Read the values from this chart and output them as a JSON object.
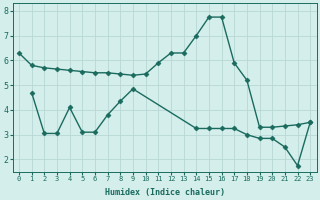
{
  "xlabel": "Humidex (Indice chaleur)",
  "background_color": "#d4eeec",
  "line_color": "#1a6b5e",
  "grid_color": "#b8d8d5",
  "x_line1": [
    0,
    1,
    2,
    3,
    4,
    5,
    6,
    7,
    8,
    9,
    10,
    11,
    12,
    13,
    14,
    15,
    16,
    17,
    18,
    19,
    20,
    21,
    22,
    23
  ],
  "y_line1": [
    6.3,
    5.8,
    5.7,
    5.65,
    5.6,
    5.55,
    5.5,
    5.5,
    5.45,
    5.4,
    5.45,
    5.9,
    6.3,
    6.3,
    7.0,
    7.75,
    7.75,
    5.9,
    5.2,
    3.3,
    3.3,
    3.35,
    3.4,
    3.5
  ],
  "x_line2": [
    1,
    2,
    3,
    4,
    5,
    6,
    7,
    8,
    9,
    14,
    15,
    16,
    17,
    18,
    19,
    20,
    21,
    22,
    23
  ],
  "y_line2": [
    4.7,
    3.05,
    3.05,
    4.1,
    3.1,
    3.1,
    3.8,
    4.35,
    4.85,
    3.25,
    3.25,
    3.25,
    3.25,
    3.0,
    2.85,
    2.85,
    2.5,
    1.75,
    3.5
  ],
  "xlim": [
    -0.5,
    23.5
  ],
  "ylim": [
    1.5,
    8.3
  ],
  "yticks": [
    2,
    3,
    4,
    5,
    6,
    7,
    8
  ],
  "xticks": [
    0,
    1,
    2,
    3,
    4,
    5,
    6,
    7,
    8,
    9,
    10,
    11,
    12,
    13,
    14,
    15,
    16,
    17,
    18,
    19,
    20,
    21,
    22,
    23
  ],
  "xtick_labels": [
    "0",
    "1",
    "2",
    "3",
    "4",
    "5",
    "6",
    "7",
    "8",
    "9",
    "10",
    "11",
    "12",
    "13",
    "14",
    "15",
    "16",
    "17",
    "18",
    "19",
    "20",
    "21",
    "22",
    "23"
  ],
  "markersize": 2.5,
  "linewidth": 1.0,
  "font_family": "monospace",
  "xlabel_fontsize": 6.0,
  "xtick_fontsize": 5.0,
  "ytick_fontsize": 6.0
}
